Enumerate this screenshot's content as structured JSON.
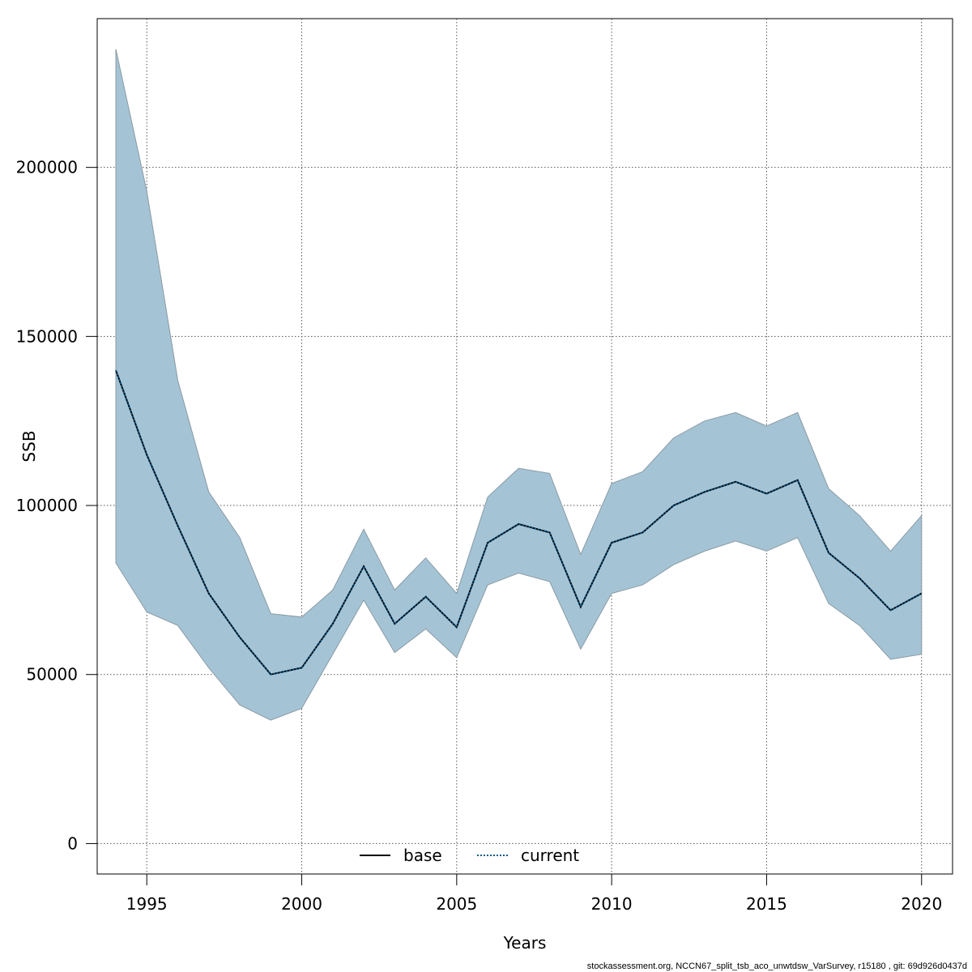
{
  "chart_data": {
    "type": "area",
    "xlabel": "Years",
    "ylabel": "SSB",
    "xlim": [
      1993.4,
      2021.0
    ],
    "ylim": [
      -9000,
      244000
    ],
    "x_ticks": [
      1995,
      2000,
      2005,
      2010,
      2015,
      2020
    ],
    "y_ticks": [
      0,
      50000,
      100000,
      150000,
      200000
    ],
    "x_tick_labels": [
      "1995",
      "2000",
      "2005",
      "2010",
      "2015",
      "2020"
    ],
    "y_tick_labels": [
      "0",
      "50000",
      "100000",
      "150000",
      "200000"
    ],
    "grid": true,
    "legend_position": "bottom",
    "x": [
      1994,
      1995,
      1996,
      1997,
      1998,
      1999,
      2000,
      2001,
      2002,
      2003,
      2004,
      2005,
      2006,
      2007,
      2008,
      2009,
      2010,
      2011,
      2012,
      2013,
      2014,
      2015,
      2016,
      2017,
      2018,
      2019,
      2020
    ],
    "series": [
      {
        "name": "base",
        "style": "solid",
        "values": [
          140000,
          115000,
          94000,
          74000,
          61000,
          50000,
          52000,
          65000,
          82000,
          65000,
          73000,
          64000,
          89000,
          94500,
          92000,
          70000,
          89000,
          92000,
          100000,
          104000,
          107000,
          103500,
          107500,
          86000,
          78500,
          69000,
          74000
        ]
      },
      {
        "name": "current",
        "style": "dotted",
        "values": [
          140000,
          115000,
          94000,
          74000,
          61000,
          50000,
          52000,
          65000,
          82000,
          65000,
          73000,
          64000,
          89000,
          94500,
          92000,
          70000,
          89000,
          92000,
          100000,
          104000,
          107000,
          103500,
          107500,
          86000,
          78500,
          69000,
          74000
        ]
      }
    ],
    "band": {
      "upper": [
        235000,
        193000,
        137000,
        104000,
        90500,
        68000,
        67000,
        75000,
        93000,
        75000,
        84500,
        74000,
        102500,
        111000,
        109500,
        85500,
        106500,
        110000,
        120000,
        125000,
        127500,
        123500,
        127500,
        105000,
        97000,
        86500,
        97000
      ],
      "lower": [
        83000,
        68500,
        64500,
        52000,
        41000,
        36500,
        40000,
        56000,
        72000,
        56500,
        63500,
        55000,
        76500,
        80000,
        77500,
        57500,
        74000,
        76500,
        82500,
        86500,
        89500,
        86500,
        90500,
        71000,
        64500,
        54500,
        56000
      ]
    },
    "colors": {
      "band_fill": "#a4c4d5",
      "band_edge": "#8a9aa4",
      "base_line": "#000000",
      "current_line": "#0f5a8c",
      "grid": "#555555"
    }
  },
  "footer_text": "stockassessment.org, NCCN67_split_tsb_aco_unwtdsw_VarSurvey, r15180 , git: 69d926d0437d"
}
